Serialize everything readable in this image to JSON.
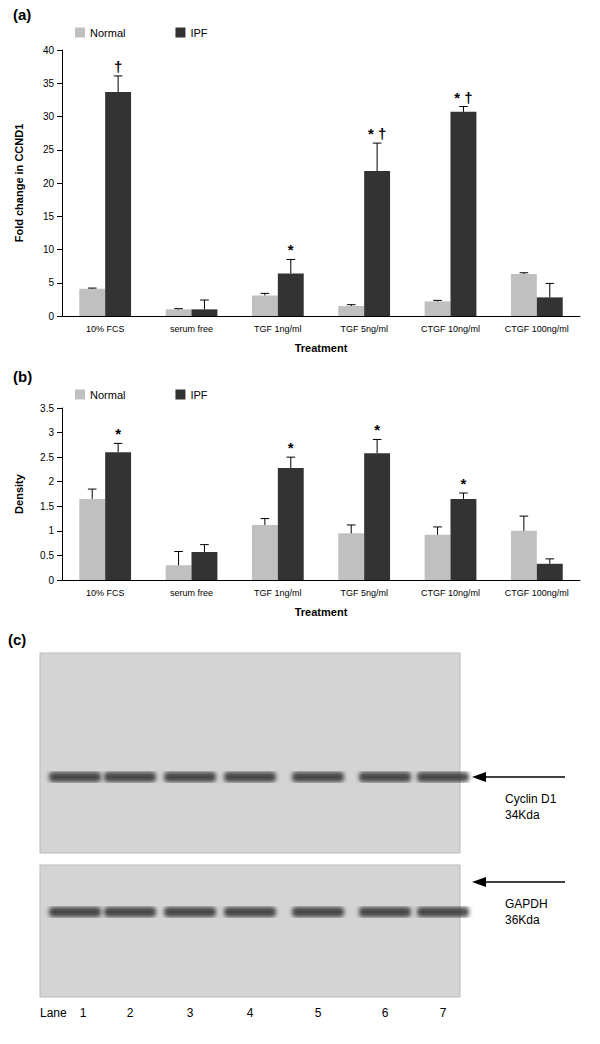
{
  "chart_data": [
    {
      "type": "bar",
      "title": "(a)",
      "x_label": "Treatment",
      "y_label": "Fold change in CCND1",
      "categories": [
        "10% FCS",
        "serum free",
        "TGF 1ng/ml",
        "TGF 5ng/ml",
        "CTGF 10ng/ml",
        "CTGF 100ng/ml"
      ],
      "series": [
        {
          "name": "Normal",
          "color": "#c0c0c0",
          "values": [
            4.1,
            1.0,
            3.1,
            1.5,
            2.2,
            6.3
          ],
          "errors": [
            0.1,
            0.1,
            0.3,
            0.2,
            0.15,
            0.2
          ],
          "marks": [
            null,
            null,
            null,
            null,
            null,
            null
          ]
        },
        {
          "name": "IPF",
          "color": "#333333",
          "values": [
            33.7,
            1.0,
            6.4,
            21.8,
            30.7,
            2.8
          ],
          "errors": [
            2.4,
            1.4,
            2.1,
            4.2,
            0.8,
            2.1
          ],
          "marks": [
            "†",
            null,
            "*",
            "* †",
            "* †",
            null
          ]
        }
      ],
      "ylim": [
        0,
        40
      ],
      "yticks": [
        0,
        5,
        10,
        15,
        20,
        25,
        30,
        35,
        40
      ],
      "grid": false,
      "legend": "top-left"
    },
    {
      "type": "bar",
      "title": "(b)",
      "x_label": "Treatment",
      "y_label": "Density",
      "categories": [
        "10% FCS",
        "serum free",
        "TGF 1ng/ml",
        "TGF 5ng/ml",
        "CTGF 10ng/ml",
        "CTGF 100ng/ml"
      ],
      "series": [
        {
          "name": "Normal",
          "color": "#c0c0c0",
          "values": [
            1.65,
            0.3,
            1.12,
            0.95,
            0.92,
            1.0
          ],
          "errors": [
            0.2,
            0.28,
            0.13,
            0.17,
            0.16,
            0.3
          ],
          "marks": [
            null,
            null,
            null,
            null,
            null,
            null
          ]
        },
        {
          "name": "IPF",
          "color": "#333333",
          "values": [
            2.6,
            0.57,
            2.28,
            2.58,
            1.65,
            0.33
          ],
          "errors": [
            0.18,
            0.15,
            0.22,
            0.28,
            0.12,
            0.1
          ],
          "marks": [
            "*",
            null,
            "*",
            "*",
            "*",
            null
          ]
        }
      ],
      "ylim": [
        0,
        3.5
      ],
      "yticks": [
        0,
        0.5,
        1,
        1.5,
        2,
        2.5,
        3,
        3.5
      ],
      "grid": false,
      "legend": "top-left"
    }
  ],
  "blot": {
    "title": "(c)",
    "bands": [
      {
        "label": "Cyclin D1",
        "size": "34Kda"
      },
      {
        "label": "GAPDH",
        "size": "36Kda"
      }
    ],
    "lane_label": "Lane",
    "lanes": [
      "1",
      "2",
      "3",
      "4",
      "5",
      "6",
      "7"
    ]
  }
}
